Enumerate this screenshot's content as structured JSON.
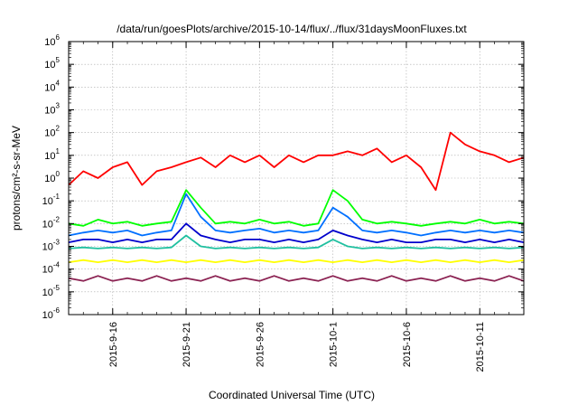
{
  "chart_data": {
    "type": "line",
    "title": "/data/run/goesPlots/archive/2015-10-14/flux/../flux/31daysMoonFluxes.txt",
    "xlabel": "Coordinated Universal Time (UTC)",
    "ylabel": "protons/cm²-s-sr-MeV",
    "yscale": "log",
    "ylim": [
      1e-06,
      1000000.0
    ],
    "xlim": [
      "2015-09-13",
      "2015-10-14"
    ],
    "x_ticks": [
      "2015-9-16",
      "2015-9-21",
      "2015-9-26",
      "2015-10-1",
      "2015-10-6",
      "2015-10-11"
    ],
    "y_ticks": [
      {
        "base": "10",
        "exp": "-6"
      },
      {
        "base": "10",
        "exp": "-5"
      },
      {
        "base": "10",
        "exp": "-4"
      },
      {
        "base": "10",
        "exp": "-3"
      },
      {
        "base": "10",
        "exp": "-2"
      },
      {
        "base": "10",
        "exp": "-1"
      },
      {
        "base": "10",
        "exp": "0"
      },
      {
        "base": "10",
        "exp": "1"
      },
      {
        "base": "10",
        "exp": "2"
      },
      {
        "base": "10",
        "exp": "3"
      },
      {
        "base": "10",
        "exp": "4"
      },
      {
        "base": "10",
        "exp": "5"
      },
      {
        "base": "10",
        "exp": "6"
      }
    ],
    "grid": true,
    "series": [
      {
        "color": "#ff0000",
        "x": [
          "2015-09-13",
          "2015-09-14",
          "2015-09-15",
          "2015-09-16",
          "2015-09-17",
          "2015-09-18",
          "2015-09-19",
          "2015-09-20",
          "2015-09-21",
          "2015-09-22",
          "2015-09-23",
          "2015-09-24",
          "2015-09-25",
          "2015-09-26",
          "2015-09-27",
          "2015-09-28",
          "2015-09-29",
          "2015-09-30",
          "2015-10-01",
          "2015-10-02",
          "2015-10-03",
          "2015-10-04",
          "2015-10-05",
          "2015-10-06",
          "2015-10-07",
          "2015-10-08",
          "2015-10-09",
          "2015-10-10",
          "2015-10-11",
          "2015-10-12",
          "2015-10-13",
          "2015-10-14"
        ],
        "y": [
          0.5,
          2,
          1,
          3,
          5,
          0.5,
          2,
          3,
          5,
          8,
          3,
          10,
          5,
          10,
          3,
          10,
          5,
          10,
          10,
          15,
          10,
          20,
          5,
          10,
          3,
          0.3,
          100,
          30,
          15,
          10,
          5,
          8
        ]
      },
      {
        "color": "#00ff00",
        "x": [
          "2015-09-13",
          "2015-09-14",
          "2015-09-15",
          "2015-09-16",
          "2015-09-17",
          "2015-09-18",
          "2015-09-19",
          "2015-09-20",
          "2015-09-21",
          "2015-09-22",
          "2015-09-23",
          "2015-09-24",
          "2015-09-25",
          "2015-09-26",
          "2015-09-27",
          "2015-09-28",
          "2015-09-29",
          "2015-09-30",
          "2015-10-01",
          "2015-10-02",
          "2015-10-03",
          "2015-10-04",
          "2015-10-05",
          "2015-10-06",
          "2015-10-07",
          "2015-10-08",
          "2015-10-09",
          "2015-10-10",
          "2015-10-11",
          "2015-10-12",
          "2015-10-13",
          "2015-10-14"
        ],
        "y": [
          0.01,
          0.008,
          0.015,
          0.01,
          0.012,
          0.008,
          0.01,
          0.012,
          0.3,
          0.05,
          0.01,
          0.012,
          0.01,
          0.015,
          0.01,
          0.012,
          0.008,
          0.01,
          0.3,
          0.1,
          0.015,
          0.01,
          0.012,
          0.01,
          0.008,
          0.01,
          0.012,
          0.01,
          0.015,
          0.01,
          0.012,
          0.01
        ]
      },
      {
        "color": "#0070ff",
        "x": [
          "2015-09-13",
          "2015-09-14",
          "2015-09-15",
          "2015-09-16",
          "2015-09-17",
          "2015-09-18",
          "2015-09-19",
          "2015-09-20",
          "2015-09-21",
          "2015-09-22",
          "2015-09-23",
          "2015-09-24",
          "2015-09-25",
          "2015-09-26",
          "2015-09-27",
          "2015-09-28",
          "2015-09-29",
          "2015-09-30",
          "2015-10-01",
          "2015-10-02",
          "2015-10-03",
          "2015-10-04",
          "2015-10-05",
          "2015-10-06",
          "2015-10-07",
          "2015-10-08",
          "2015-10-09",
          "2015-10-10",
          "2015-10-11",
          "2015-10-12",
          "2015-10-13",
          "2015-10-14"
        ],
        "y": [
          0.003,
          0.004,
          0.005,
          0.004,
          0.005,
          0.003,
          0.004,
          0.005,
          0.2,
          0.02,
          0.005,
          0.004,
          0.005,
          0.006,
          0.004,
          0.005,
          0.004,
          0.005,
          0.05,
          0.02,
          0.005,
          0.004,
          0.005,
          0.004,
          0.003,
          0.004,
          0.005,
          0.004,
          0.005,
          0.004,
          0.005,
          0.004
        ]
      },
      {
        "color": "#0000cc",
        "x": [
          "2015-09-13",
          "2015-09-14",
          "2015-09-15",
          "2015-09-16",
          "2015-09-17",
          "2015-09-18",
          "2015-09-19",
          "2015-09-20",
          "2015-09-21",
          "2015-09-22",
          "2015-09-23",
          "2015-09-24",
          "2015-09-25",
          "2015-09-26",
          "2015-09-27",
          "2015-09-28",
          "2015-09-29",
          "2015-09-30",
          "2015-10-01",
          "2015-10-02",
          "2015-10-03",
          "2015-10-04",
          "2015-10-05",
          "2015-10-06",
          "2015-10-07",
          "2015-10-08",
          "2015-10-09",
          "2015-10-10",
          "2015-10-11",
          "2015-10-12",
          "2015-10-13",
          "2015-10-14"
        ],
        "y": [
          0.0015,
          0.002,
          0.002,
          0.0015,
          0.002,
          0.0015,
          0.002,
          0.002,
          0.01,
          0.003,
          0.002,
          0.0015,
          0.002,
          0.002,
          0.0015,
          0.002,
          0.0015,
          0.002,
          0.005,
          0.003,
          0.002,
          0.0015,
          0.002,
          0.0015,
          0.0015,
          0.002,
          0.002,
          0.0015,
          0.002,
          0.0015,
          0.002,
          0.0015
        ]
      },
      {
        "color": "#20c0a0",
        "x": [
          "2015-09-13",
          "2015-09-14",
          "2015-09-15",
          "2015-09-16",
          "2015-09-17",
          "2015-09-18",
          "2015-09-19",
          "2015-09-20",
          "2015-09-21",
          "2015-09-22",
          "2015-09-23",
          "2015-09-24",
          "2015-09-25",
          "2015-09-26",
          "2015-09-27",
          "2015-09-28",
          "2015-09-29",
          "2015-09-30",
          "2015-10-01",
          "2015-10-02",
          "2015-10-03",
          "2015-10-04",
          "2015-10-05",
          "2015-10-06",
          "2015-10-07",
          "2015-10-08",
          "2015-10-09",
          "2015-10-10",
          "2015-10-11",
          "2015-10-12",
          "2015-10-13",
          "2015-10-14"
        ],
        "y": [
          0.0008,
          0.0009,
          0.0008,
          0.0009,
          0.0008,
          0.0009,
          0.0008,
          0.0009,
          0.003,
          0.001,
          0.0008,
          0.0009,
          0.0008,
          0.0009,
          0.0008,
          0.0009,
          0.0008,
          0.0009,
          0.002,
          0.001,
          0.0008,
          0.0009,
          0.0008,
          0.0009,
          0.0008,
          0.0009,
          0.0008,
          0.0009,
          0.0008,
          0.0009,
          0.0008,
          0.0009
        ]
      },
      {
        "color": "#ffff00",
        "x": [
          "2015-09-13",
          "2015-09-14",
          "2015-09-15",
          "2015-09-16",
          "2015-09-17",
          "2015-09-18",
          "2015-09-19",
          "2015-09-20",
          "2015-09-21",
          "2015-09-22",
          "2015-09-23",
          "2015-09-24",
          "2015-09-25",
          "2015-09-26",
          "2015-09-27",
          "2015-09-28",
          "2015-09-29",
          "2015-09-30",
          "2015-10-01",
          "2015-10-02",
          "2015-10-03",
          "2015-10-04",
          "2015-10-05",
          "2015-10-06",
          "2015-10-07",
          "2015-10-08",
          "2015-10-09",
          "2015-10-10",
          "2015-10-11",
          "2015-10-12",
          "2015-10-13",
          "2015-10-14"
        ],
        "y": [
          0.0002,
          0.00025,
          0.0002,
          0.00025,
          0.0002,
          0.00025,
          0.0002,
          0.00025,
          0.0002,
          0.00025,
          0.0002,
          0.00025,
          0.0002,
          0.00025,
          0.0002,
          0.00025,
          0.0002,
          0.00025,
          0.0002,
          0.00025,
          0.0002,
          0.00025,
          0.0002,
          0.00025,
          0.0002,
          0.00025,
          0.0002,
          0.00025,
          0.0002,
          0.00025,
          0.0002,
          0.00025
        ]
      },
      {
        "color": "#8b2252",
        "x": [
          "2015-09-13",
          "2015-09-14",
          "2015-09-15",
          "2015-09-16",
          "2015-09-17",
          "2015-09-18",
          "2015-09-19",
          "2015-09-20",
          "2015-09-21",
          "2015-09-22",
          "2015-09-23",
          "2015-09-24",
          "2015-09-25",
          "2015-09-26",
          "2015-09-27",
          "2015-09-28",
          "2015-09-29",
          "2015-09-30",
          "2015-10-01",
          "2015-10-02",
          "2015-10-03",
          "2015-10-04",
          "2015-10-05",
          "2015-10-06",
          "2015-10-07",
          "2015-10-08",
          "2015-10-09",
          "2015-10-10",
          "2015-10-11",
          "2015-10-12",
          "2015-10-13",
          "2015-10-14"
        ],
        "y": [
          4e-05,
          3e-05,
          5e-05,
          3e-05,
          4e-05,
          3e-05,
          5e-05,
          3e-05,
          4e-05,
          3e-05,
          5e-05,
          3e-05,
          4e-05,
          3e-05,
          5e-05,
          3e-05,
          4e-05,
          3e-05,
          5e-05,
          3e-05,
          4e-05,
          3e-05,
          5e-05,
          3e-05,
          4e-05,
          3e-05,
          5e-05,
          3e-05,
          4e-05,
          3e-05,
          5e-05,
          3e-05
        ]
      }
    ]
  }
}
